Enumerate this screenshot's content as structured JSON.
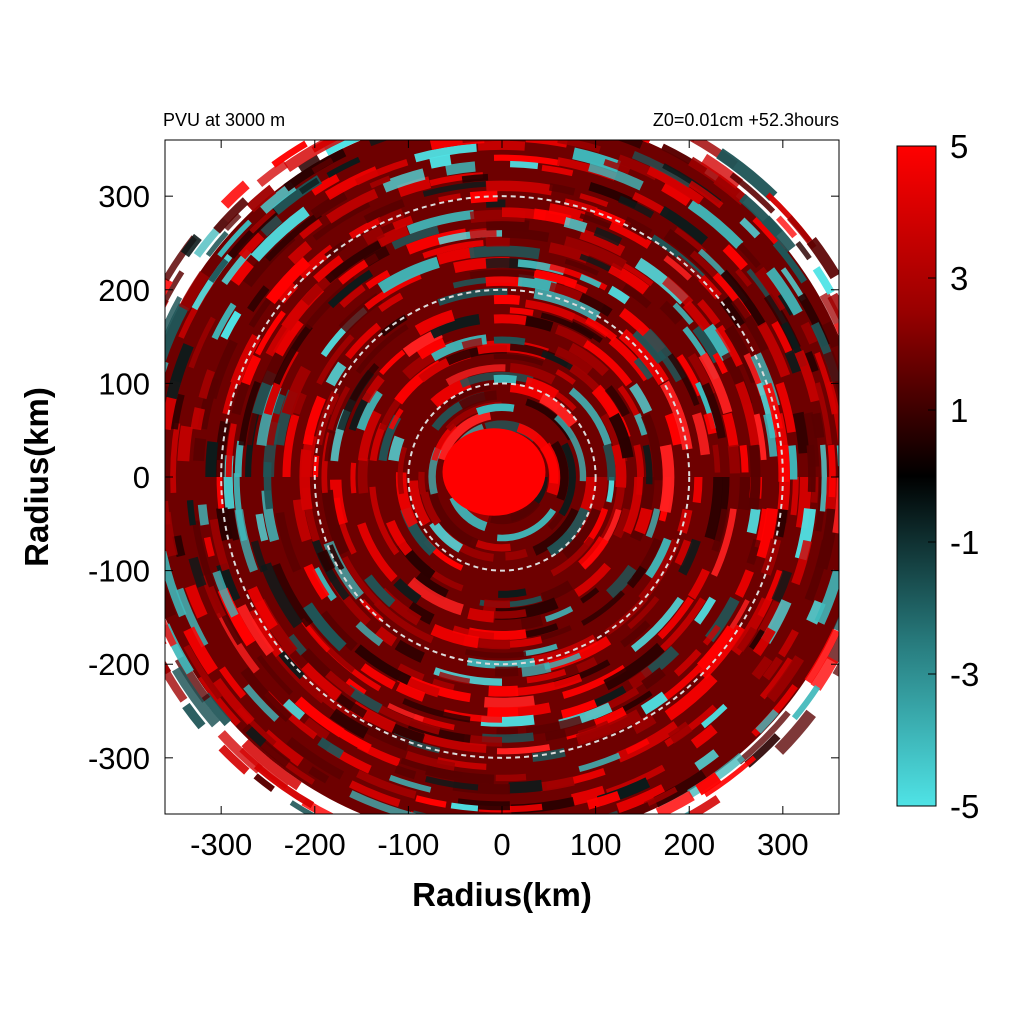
{
  "chart_data": {
    "type": "heatmap",
    "title_left": "PVU at  3000 m",
    "title_right": "Z0=0.01cm  +52.3hours",
    "xlabel": "Radius(km)",
    "ylabel": "Radius(km)",
    "xlim": [
      -360,
      360
    ],
    "ylim": [
      -360,
      360
    ],
    "x_ticks": [
      -300,
      -200,
      -100,
      0,
      100,
      200,
      300
    ],
    "y_ticks": [
      300,
      200,
      100,
      0,
      -100,
      -200,
      -300
    ],
    "domain_radius_km": 390,
    "reference_circles_km": [
      100,
      200,
      300
    ],
    "eye_radius_km": 55,
    "colorbar": {
      "range": [
        -5,
        5
      ],
      "tick_labels": [
        "5",
        "3",
        "1",
        "-1",
        "-3",
        "-5"
      ],
      "tick_values": [
        5,
        3,
        1,
        -1,
        -3,
        -5
      ],
      "colors": {
        "low": "#4fe3e6",
        "mid": "#000000",
        "high": "#ff0000"
      }
    }
  }
}
